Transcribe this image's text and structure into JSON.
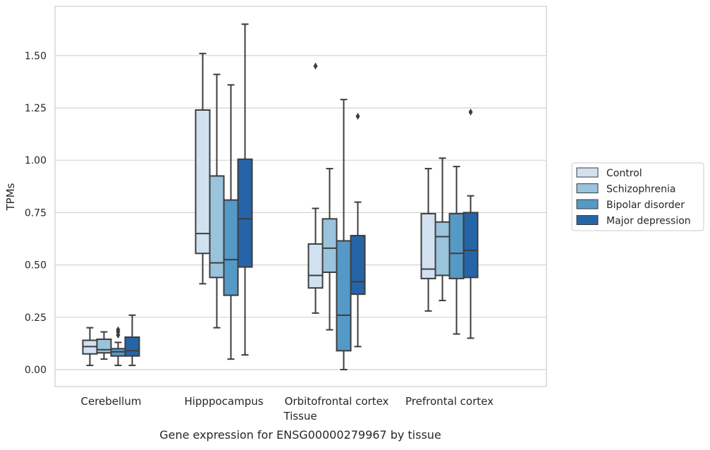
{
  "chart_data": {
    "type": "box",
    "title": "",
    "xlabel": "Tissue",
    "ylabel": "TPMs",
    "caption": "Gene expression for ENSG00000279967 by tissue",
    "categories": [
      "Cerebellum",
      "Hipppocampus",
      "Orbitofrontal cortex",
      "Prefrontal cortex"
    ],
    "ylim": [
      -0.08,
      1.73
    ],
    "yticks": [
      0.0,
      0.25,
      0.5,
      0.75,
      1.0,
      1.25,
      1.5
    ],
    "ytick_labels": [
      "0.00",
      "0.25",
      "0.50",
      "0.75",
      "1.00",
      "1.25",
      "1.50"
    ],
    "grid": true,
    "legend_position": "right",
    "series": [
      {
        "name": "Control",
        "color": "#d1e1f0",
        "boxes": [
          {
            "min": 0.02,
            "q1": 0.075,
            "median": 0.11,
            "q3": 0.14,
            "max": 0.2,
            "outliers": []
          },
          {
            "min": 0.41,
            "q1": 0.555,
            "median": 0.65,
            "q3": 1.24,
            "max": 1.51,
            "outliers": []
          },
          {
            "min": 0.27,
            "q1": 0.39,
            "median": 0.45,
            "q3": 0.6,
            "max": 0.77,
            "outliers": [
              1.45
            ]
          },
          {
            "min": 0.28,
            "q1": 0.435,
            "median": 0.48,
            "q3": 0.745,
            "max": 0.96,
            "outliers": []
          }
        ]
      },
      {
        "name": "Schizophrenia",
        "color": "#9ac3dc",
        "boxes": [
          {
            "min": 0.05,
            "q1": 0.08,
            "median": 0.095,
            "q3": 0.145,
            "max": 0.18,
            "outliers": []
          },
          {
            "min": 0.2,
            "q1": 0.44,
            "median": 0.51,
            "q3": 0.925,
            "max": 1.41,
            "outliers": []
          },
          {
            "min": 0.19,
            "q1": 0.465,
            "median": 0.58,
            "q3": 0.72,
            "max": 0.96,
            "outliers": []
          },
          {
            "min": 0.33,
            "q1": 0.45,
            "median": 0.635,
            "q3": 0.705,
            "max": 1.01,
            "outliers": []
          }
        ]
      },
      {
        "name": "Bipolar disorder",
        "color": "#5599c6",
        "boxes": [
          {
            "min": 0.02,
            "q1": 0.065,
            "median": 0.085,
            "q3": 0.1,
            "max": 0.13,
            "outliers": [
              0.19,
              0.18,
              0.165
            ]
          },
          {
            "min": 0.05,
            "q1": 0.355,
            "median": 0.525,
            "q3": 0.81,
            "max": 1.36,
            "outliers": []
          },
          {
            "min": 0.0,
            "q1": 0.09,
            "median": 0.26,
            "q3": 0.615,
            "max": 1.29,
            "outliers": []
          },
          {
            "min": 0.17,
            "q1": 0.435,
            "median": 0.555,
            "q3": 0.745,
            "max": 0.97,
            "outliers": []
          }
        ]
      },
      {
        "name": "Major depression",
        "color": "#2565a7",
        "boxes": [
          {
            "min": 0.02,
            "q1": 0.065,
            "median": 0.09,
            "q3": 0.155,
            "max": 0.26,
            "outliers": []
          },
          {
            "min": 0.07,
            "q1": 0.49,
            "median": 0.72,
            "q3": 1.005,
            "max": 1.65,
            "outliers": []
          },
          {
            "min": 0.11,
            "q1": 0.36,
            "median": 0.42,
            "q3": 0.64,
            "max": 0.8,
            "outliers": [
              1.21
            ]
          },
          {
            "min": 0.15,
            "q1": 0.44,
            "median": 0.57,
            "q3": 0.75,
            "max": 0.83,
            "outliers": [
              1.23
            ]
          }
        ]
      }
    ]
  }
}
